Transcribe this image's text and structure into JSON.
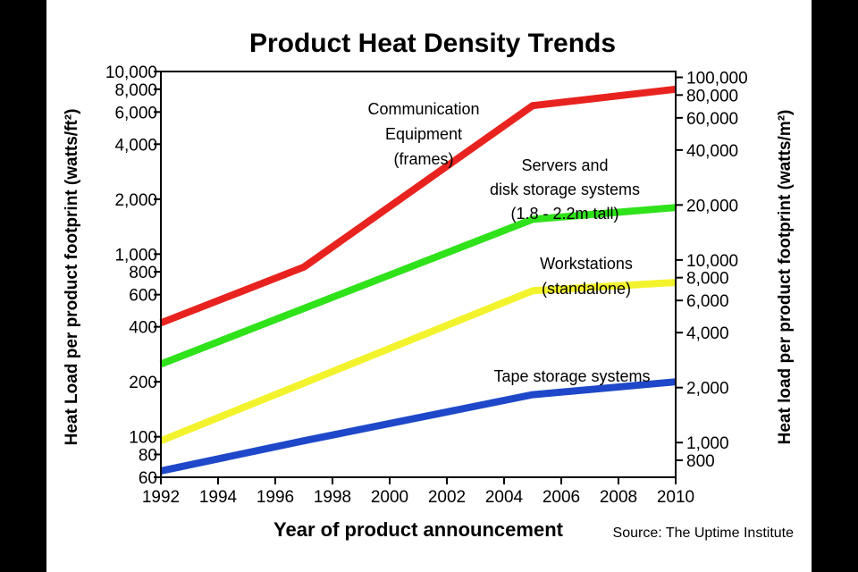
{
  "chart_data": {
    "type": "line",
    "title": "Product Heat Density Trends",
    "xlabel": "Year of product announcement",
    "ylabel": "Heat Load per product footprint (watts/ft²)",
    "y2label": "Heat load per product footprint (watts/m²)",
    "source": "Source: The Uptime Institute",
    "xlim": [
      1992,
      2010
    ],
    "ylim": [
      60,
      10000
    ],
    "y2lim": [
      645.8,
      107640
    ],
    "yscale": "log",
    "grid": false,
    "xticks": [
      {
        "value": 1992,
        "label": "1992"
      },
      {
        "value": 1994,
        "label": "1994"
      },
      {
        "value": 1996,
        "label": "1996"
      },
      {
        "value": 1998,
        "label": "1998"
      },
      {
        "value": 2000,
        "label": "2000"
      },
      {
        "value": 2002,
        "label": "2002"
      },
      {
        "value": 2004,
        "label": "2004"
      },
      {
        "value": 2006,
        "label": "2006"
      },
      {
        "value": 2008,
        "label": "2008"
      },
      {
        "value": 2010,
        "label": "2010"
      }
    ],
    "yticks": [
      {
        "value": 10000,
        "label": "10,000"
      },
      {
        "value": 8000,
        "label": "8,000"
      },
      {
        "value": 6000,
        "label": "6,000"
      },
      {
        "value": 4000,
        "label": "4,000"
      },
      {
        "value": 2000,
        "label": "2,000"
      },
      {
        "value": 1000,
        "label": "1,000"
      },
      {
        "value": 800,
        "label": "800"
      },
      {
        "value": 600,
        "label": "600"
      },
      {
        "value": 400,
        "label": "400"
      },
      {
        "value": 200,
        "label": "200"
      },
      {
        "value": 100,
        "label": "100"
      },
      {
        "value": 80,
        "label": "80"
      },
      {
        "value": 60,
        "label": "60"
      }
    ],
    "y2ticks": [
      {
        "value": 100000,
        "label": "100,000"
      },
      {
        "value": 80000,
        "label": "80,000"
      },
      {
        "value": 60000,
        "label": "60,000"
      },
      {
        "value": 40000,
        "label": "40,000"
      },
      {
        "value": 20000,
        "label": "20,000"
      },
      {
        "value": 10000,
        "label": "10,000"
      },
      {
        "value": 8000,
        "label": "8,000"
      },
      {
        "value": 6000,
        "label": "6,000"
      },
      {
        "value": 4000,
        "label": "4,000"
      },
      {
        "value": 2000,
        "label": "2,000"
      },
      {
        "value": 1000,
        "label": "1,000"
      },
      {
        "value": 800,
        "label": "800"
      }
    ],
    "series": [
      {
        "key": "communication",
        "color": "#e8231f",
        "points": [
          [
            1992,
            420
          ],
          [
            1997,
            850
          ],
          [
            2005,
            6500
          ],
          [
            2010,
            8000
          ]
        ],
        "label_lines": [
          "Communication",
          "Equipment",
          "(frames)"
        ]
      },
      {
        "key": "servers",
        "color": "#2fe21a",
        "points": [
          [
            1992,
            250
          ],
          [
            2005,
            1550
          ],
          [
            2010,
            1800
          ]
        ],
        "label_lines": [
          "Servers and",
          "disk storage systems",
          "(1.8 - 2.2m tall)"
        ]
      },
      {
        "key": "workstations",
        "color": "#f3f32d",
        "points": [
          [
            1992,
            95
          ],
          [
            2005,
            630
          ],
          [
            2010,
            700
          ]
        ],
        "label_lines": [
          "Workstations",
          "(standalone)"
        ]
      },
      {
        "key": "tape",
        "color": "#1e48c9",
        "points": [
          [
            1992,
            65
          ],
          [
            1997,
            95
          ],
          [
            2005,
            170
          ],
          [
            2010,
            200
          ]
        ],
        "label_lines": [
          "Tape storage systems"
        ]
      }
    ]
  }
}
